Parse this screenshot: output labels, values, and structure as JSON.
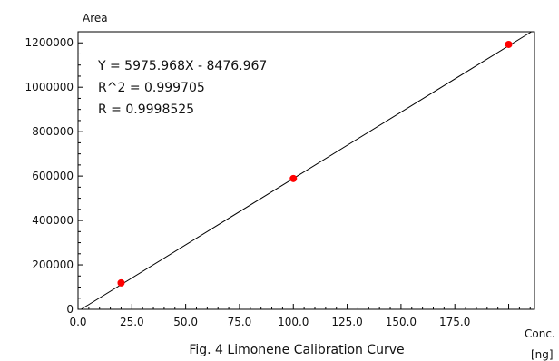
{
  "chart_data": {
    "type": "scatter",
    "title": "Fig. 4 Limonene Calibration Curve",
    "xlabel": "Conc.",
    "xunit": "[ng]",
    "ylabel": "Area",
    "xlim": [
      0,
      212
    ],
    "ylim": [
      0,
      1250000
    ],
    "x_ticks": [
      "0.0",
      "25.0",
      "50.0",
      "75.0",
      "100.0",
      "125.0",
      "150.0",
      "175.0"
    ],
    "y_ticks": [
      "0",
      "200000",
      "400000",
      "600000",
      "800000",
      "1000000",
      "1200000"
    ],
    "points": [
      {
        "x": 20,
        "y": 119000
      },
      {
        "x": 100,
        "y": 589000
      },
      {
        "x": 200,
        "y": 1193000
      }
    ],
    "fit": {
      "slope": 5975.968,
      "intercept": -8476.967,
      "x_range": [
        0,
        212
      ]
    },
    "annotations": [
      "Y = 5975.968X - 8476.967",
      "R^2 = 0.999705",
      "R = 0.9998525"
    ],
    "grid": false,
    "point_color": "#ff0000",
    "line_color": "#000000"
  }
}
